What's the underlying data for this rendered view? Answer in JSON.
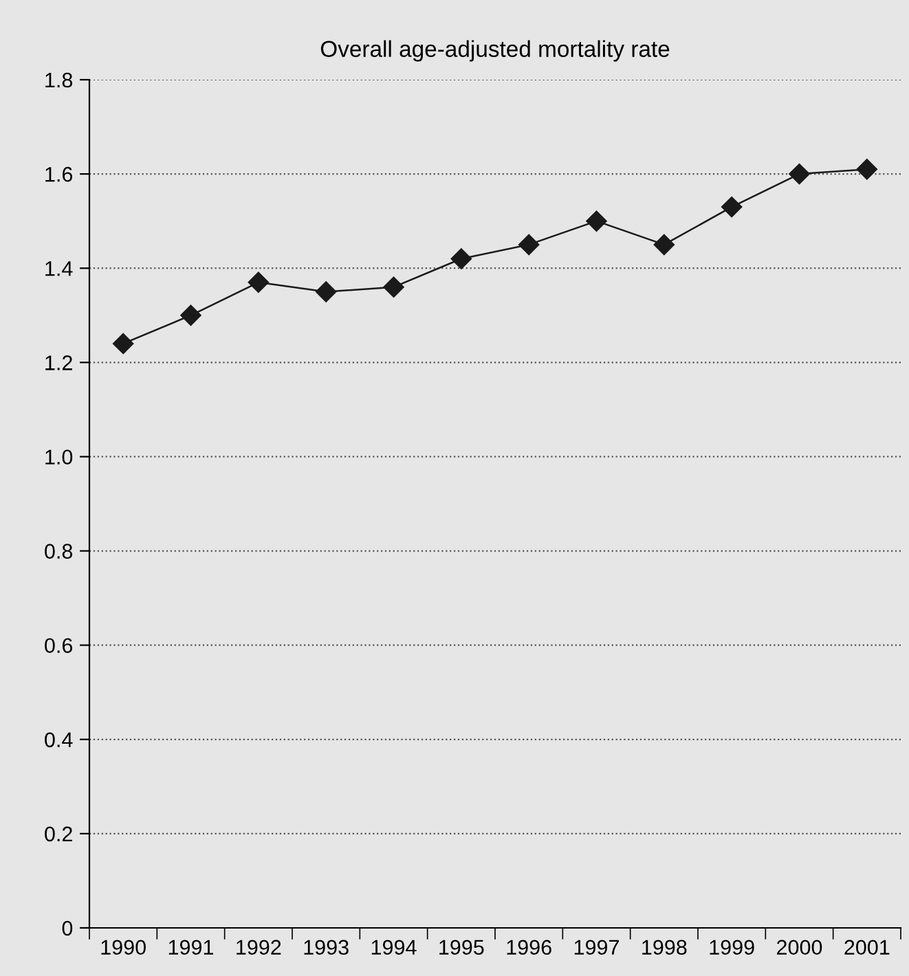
{
  "chart_data": {
    "type": "line",
    "title": "Overall age-adjusted mortality rate",
    "categories": [
      "1990",
      "1991",
      "1992",
      "1993",
      "1994",
      "1995",
      "1996",
      "1997",
      "1998",
      "1999",
      "2000",
      "2001"
    ],
    "series": [
      {
        "color": "#1a1a1a",
        "values": [
          1.24,
          1.3,
          1.37,
          1.35,
          1.36,
          1.42,
          1.45,
          1.5,
          1.45,
          1.53,
          1.6,
          1.61
        ]
      }
    ],
    "ylim": [
      0,
      1.8
    ],
    "yticks": [
      {
        "value": 0,
        "label": "0"
      },
      {
        "value": 0.2,
        "label": "0.2"
      },
      {
        "value": 0.4,
        "label": "0.4"
      },
      {
        "value": 0.6,
        "label": "0.6"
      },
      {
        "value": 0.8,
        "label": "0.8"
      },
      {
        "value": 1.0,
        "label": "1.0"
      },
      {
        "value": 1.2,
        "label": "1.2"
      },
      {
        "value": 1.4,
        "label": "1.4"
      },
      {
        "value": 1.6,
        "label": "1.6"
      },
      {
        "value": 1.8,
        "label": "1.8"
      }
    ],
    "grid": "y",
    "marker": "diamond",
    "line_style": "solid",
    "legend": false
  }
}
